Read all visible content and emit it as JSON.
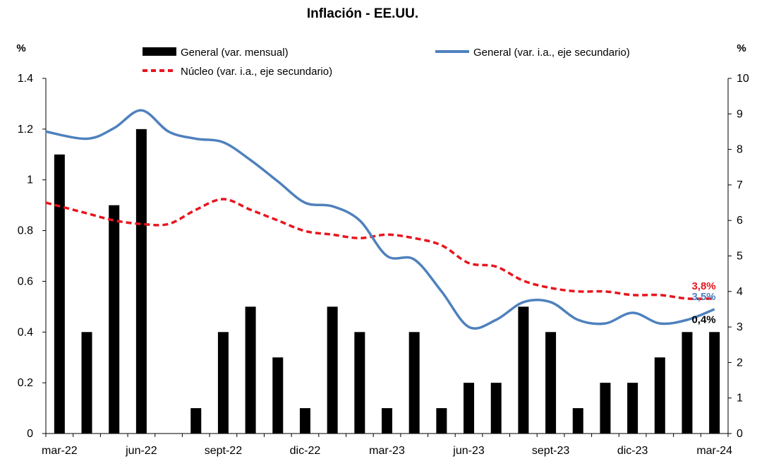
{
  "chart_data": {
    "type": "bar",
    "title": "Inflación - EE.UU.",
    "left_unit": "%",
    "right_unit": "%",
    "categories": [
      "mar-22",
      "abr-22",
      "may-22",
      "jun-22",
      "jul-22",
      "ago-22",
      "sept-22",
      "oct-22",
      "nov-22",
      "dic-22",
      "ene-23",
      "feb-23",
      "mar-23",
      "abr-23",
      "may-23",
      "jun-23",
      "jul-23",
      "ago-23",
      "sept-23",
      "oct-23",
      "nov-23",
      "dic-23",
      "ene-24",
      "feb-24",
      "mar-24"
    ],
    "x_tick_labels": [
      {
        "index": 0,
        "label": "mar-22"
      },
      {
        "index": 3,
        "label": "jun-22"
      },
      {
        "index": 6,
        "label": "sept-22"
      },
      {
        "index": 9,
        "label": "dic-22"
      },
      {
        "index": 12,
        "label": "mar-23"
      },
      {
        "index": 15,
        "label": "jun-23"
      },
      {
        "index": 18,
        "label": "sept-23"
      },
      {
        "index": 21,
        "label": "dic-23"
      },
      {
        "index": 24,
        "label": "mar-24"
      }
    ],
    "y_left": {
      "min": 0,
      "max": 1.4,
      "ticks": [
        0,
        0.2,
        0.4,
        0.6,
        0.8,
        1,
        1.2,
        1.4
      ],
      "tick_labels": [
        "0",
        "0.2",
        "0.4",
        "0.6",
        "0.8",
        "1",
        "1.2",
        "1.4"
      ]
    },
    "y_right": {
      "min": 0,
      "max": 10,
      "ticks": [
        0,
        1,
        2,
        3,
        4,
        5,
        6,
        7,
        8,
        9,
        10
      ],
      "tick_labels": [
        "0",
        "1",
        "2",
        "3",
        "4",
        "5",
        "6",
        "7",
        "8",
        "9",
        "10"
      ]
    },
    "grid": false,
    "legend_position": "top",
    "series": [
      {
        "name": "General (var. mensual)",
        "kind": "bar",
        "axis": "left",
        "color": "#000000",
        "values": [
          1.1,
          0.4,
          0.9,
          1.2,
          0.0,
          0.1,
          0.4,
          0.5,
          0.3,
          0.1,
          0.5,
          0.4,
          0.1,
          0.4,
          0.1,
          0.2,
          0.2,
          0.5,
          0.4,
          0.1,
          0.2,
          0.2,
          0.3,
          0.4,
          0.4
        ]
      },
      {
        "name": "General (var. i.a., eje secundario)",
        "kind": "line",
        "axis": "right",
        "color": "#4F81BD",
        "dashed": false,
        "values": [
          8.5,
          8.3,
          8.6,
          9.1,
          8.5,
          8.3,
          8.2,
          7.7,
          7.1,
          6.5,
          6.4,
          6.0,
          5.0,
          4.9,
          4.0,
          3.0,
          3.2,
          3.7,
          3.7,
          3.2,
          3.1,
          3.4,
          3.1,
          3.2,
          3.5
        ]
      },
      {
        "name": "Núcleo (var. i.a., eje secundario)",
        "kind": "line",
        "axis": "right",
        "color": "#E8151E",
        "dashed": true,
        "values": [
          6.5,
          6.2,
          6.0,
          5.9,
          5.9,
          6.3,
          6.6,
          6.3,
          6.0,
          5.7,
          5.6,
          5.5,
          5.6,
          5.5,
          5.3,
          4.8,
          4.7,
          4.3,
          4.1,
          4.0,
          4.0,
          3.9,
          3.9,
          3.8,
          3.8
        ]
      }
    ],
    "annotations": [
      {
        "series": 2,
        "index": 24,
        "label": "3,8%",
        "color": "#E8151E"
      },
      {
        "series": 1,
        "index": 24,
        "label": "3,5%",
        "color": "#4F81BD"
      },
      {
        "series": 0,
        "index": 24,
        "label": "0,4%",
        "color": "#000000"
      }
    ]
  }
}
